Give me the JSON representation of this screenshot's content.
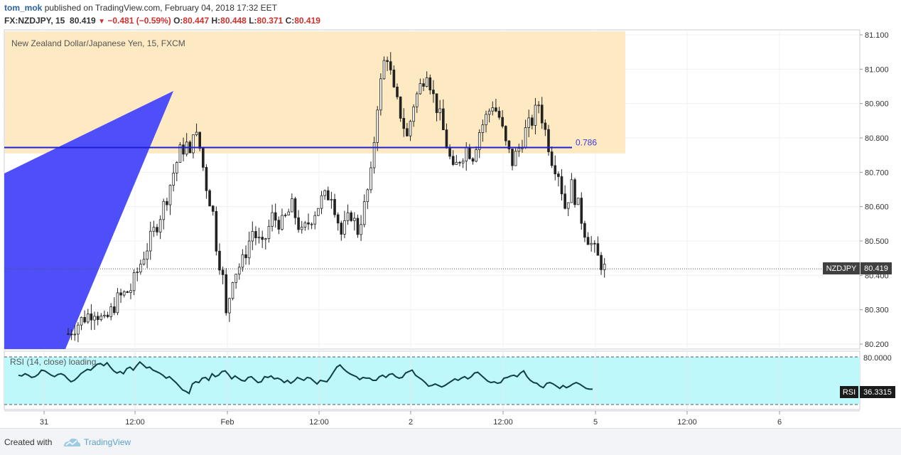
{
  "header": {
    "user": "tom_mok",
    "published_text": "published on TradingView.com, February 04, 2018 17:32 EET",
    "symbol": "FX:NZDJPY, 15",
    "last": "80.419",
    "change": "−0.481 (−0.59%)",
    "o_label": "O:",
    "o_value": "80.447",
    "h_label": "H:",
    "h_value": "80.448",
    "l_label": "L:",
    "l_value": "80.371",
    "c_label": "C:",
    "c_value": "80.419"
  },
  "footer": {
    "created_with": "Created with",
    "brand": "TradingView"
  },
  "colors": {
    "candle": "#222222",
    "zone": "#fde9c2",
    "rsi_band": "#bff8fb",
    "level_line": "#1f1fd6",
    "wedge": "#4f4ffa",
    "rsi_line": "#0e3f45"
  },
  "chart_data": [
    {
      "type": "candlestick",
      "title": "New Zealand Dollar/Japanese Yen, 15, FXCM",
      "x_ticks": [
        "31",
        "12:00",
        "Feb",
        "12:00",
        "2",
        "12:00",
        "5",
        "12:00",
        "6"
      ],
      "y_ticks": [
        "81.100",
        "81.000",
        "80.900",
        "80.800",
        "80.700",
        "80.600",
        "80.500",
        "80.400",
        "80.300",
        "80.200"
      ],
      "ylim": [
        80.185,
        81.11
      ],
      "price_tag": {
        "label": "NZDJPY",
        "value": "80.419",
        "price": 80.419
      },
      "level": {
        "label": "0.786",
        "price": 80.772
      },
      "zone": {
        "price_low": 80.755,
        "price_high": 81.11
      },
      "path_points": [
        [
          0,
          80.23
        ],
        [
          4,
          80.27
        ],
        [
          8,
          80.3
        ],
        [
          11,
          80.26
        ],
        [
          15,
          80.33
        ],
        [
          19,
          80.36
        ],
        [
          23,
          80.46
        ],
        [
          27,
          80.55
        ],
        [
          30,
          80.63
        ],
        [
          32,
          80.7
        ],
        [
          34,
          80.76
        ],
        [
          36,
          80.78
        ],
        [
          37,
          80.74
        ],
        [
          38,
          80.83
        ],
        [
          40,
          80.77
        ],
        [
          42,
          80.66
        ],
        [
          44,
          80.58
        ],
        [
          45,
          80.49
        ],
        [
          47,
          80.39
        ],
        [
          48,
          80.28
        ],
        [
          50,
          80.4
        ],
        [
          53,
          80.44
        ],
        [
          56,
          80.53
        ],
        [
          59,
          80.48
        ],
        [
          62,
          80.57
        ],
        [
          65,
          80.55
        ],
        [
          68,
          80.6
        ],
        [
          71,
          80.52
        ],
        [
          74,
          80.57
        ],
        [
          77,
          80.62
        ],
        [
          80,
          80.64
        ],
        [
          83,
          80.52
        ],
        [
          86,
          80.58
        ],
        [
          88,
          80.53
        ],
        [
          90,
          80.6
        ],
        [
          92,
          80.69
        ],
        [
          94,
          80.9
        ],
        [
          96,
          81.02
        ],
        [
          97,
          81.04
        ],
        [
          99,
          80.93
        ],
        [
          101,
          80.87
        ],
        [
          103,
          80.8
        ],
        [
          105,
          80.9
        ],
        [
          107,
          80.95
        ],
        [
          109,
          81.0
        ],
        [
          111,
          80.92
        ],
        [
          113,
          80.86
        ],
        [
          115,
          80.78
        ],
        [
          117,
          80.7
        ],
        [
          119,
          80.74
        ],
        [
          121,
          80.77
        ],
        [
          123,
          80.75
        ],
        [
          125,
          80.82
        ],
        [
          127,
          80.86
        ],
        [
          129,
          80.9
        ],
        [
          131,
          80.86
        ],
        [
          133,
          80.78
        ],
        [
          135,
          80.73
        ],
        [
          137,
          80.77
        ],
        [
          139,
          80.82
        ],
        [
          141,
          80.85
        ],
        [
          143,
          80.9
        ],
        [
          145,
          80.82
        ],
        [
          147,
          80.74
        ],
        [
          149,
          80.7
        ],
        [
          151,
          80.6
        ],
        [
          153,
          80.66
        ],
        [
          155,
          80.6
        ],
        [
          157,
          80.53
        ],
        [
          159,
          80.49
        ],
        [
          161,
          80.45
        ],
        [
          163,
          80.42
        ]
      ]
    },
    {
      "type": "line",
      "title": "RSI (14, close) loading...",
      "y_ticks": [
        "80.0000"
      ],
      "ylim": [
        15,
        80
      ],
      "value_tag": {
        "label": "RSI",
        "value": "36.3315",
        "value_num": 36.3315
      },
      "values": [
        55,
        54,
        57,
        55,
        52,
        53,
        56,
        62,
        61,
        58,
        55,
        53,
        56,
        57,
        55,
        50,
        46,
        48,
        52,
        57,
        60,
        63,
        62,
        66,
        70,
        71,
        68,
        72,
        66,
        61,
        58,
        60,
        57,
        64,
        66,
        62,
        68,
        73,
        69,
        65,
        66,
        62,
        60,
        58,
        55,
        51,
        53,
        49,
        45,
        40,
        35,
        33,
        30,
        43,
        46,
        45,
        51,
        52,
        48,
        57,
        53,
        55,
        60,
        61,
        56,
        50,
        54,
        51,
        48,
        47,
        52,
        53,
        49,
        45,
        46,
        53,
        52,
        54,
        50,
        51,
        49,
        45,
        48,
        44,
        47,
        52,
        50,
        48,
        52,
        51,
        47,
        43,
        48,
        47,
        46,
        52,
        59,
        66,
        69,
        64,
        60,
        57,
        55,
        53,
        49,
        52,
        51,
        51,
        48,
        48,
        53,
        55,
        52,
        56,
        57,
        53,
        51,
        52,
        58,
        60,
        62,
        55,
        52,
        49,
        45,
        40,
        41,
        43,
        41,
        39,
        41,
        44,
        47,
        50,
        48,
        51,
        53,
        50,
        53,
        58,
        59,
        55,
        51,
        47,
        45,
        46,
        44,
        45,
        51,
        52,
        54,
        55,
        53,
        58,
        61,
        53,
        48,
        45,
        44,
        40,
        38,
        44,
        45,
        43,
        40,
        37,
        41,
        38,
        40,
        43,
        45,
        43,
        40,
        37,
        36,
        36
      ]
    }
  ]
}
